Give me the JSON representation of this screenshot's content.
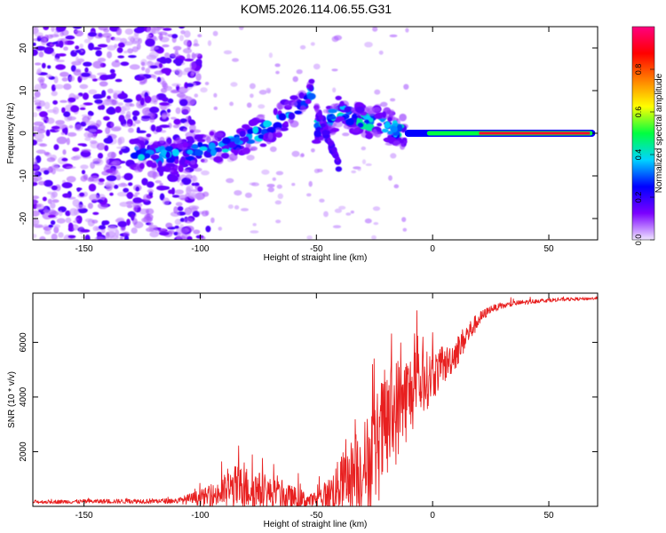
{
  "title": "KOM5.2026.114.06.55.G31",
  "chart_data": [
    {
      "type": "heatmap",
      "name": "spectrogram",
      "xlabel": "Height of straight line (km)",
      "ylabel": "Frequency (Hz)",
      "xlim": [
        -172,
        71
      ],
      "ylim": [
        -25,
        25
      ],
      "xticks": [
        -150,
        -100,
        -50,
        0,
        50
      ],
      "yticks": [
        -20,
        -10,
        0,
        10,
        20
      ],
      "colorbar": {
        "label": "Normalized spectral amplitude",
        "range": [
          0,
          1
        ],
        "ticks": [
          0.0,
          0.2,
          0.4,
          0.6,
          0.8
        ],
        "tick_labels": [
          "0.0",
          "0.2",
          "0.4",
          "0.6",
          "0.8"
        ],
        "colormap": [
          "#ffffff",
          "#7b00ff",
          "#0000ff",
          "#00d4ff",
          "#00ff40",
          "#ffff00",
          "#ff8000",
          "#ff0000",
          "#ff0080"
        ]
      },
      "features": [
        {
          "description": "noise",
          "x_range": [
            -172,
            -100
          ],
          "y_range": [
            -25,
            25
          ],
          "amplitude": 0.08
        },
        {
          "description": "rising ridge",
          "x": [
            -130,
            -110,
            -90,
            -75,
            -60,
            -52
          ],
          "y": [
            -5,
            -5,
            -3,
            0,
            5,
            10
          ],
          "amplitude": 0.3
        },
        {
          "description": "second ridge",
          "x": [
            -50,
            -40,
            -30,
            -20,
            -12
          ],
          "y": [
            1,
            5,
            3,
            2,
            0
          ],
          "amplitude": 0.35
        },
        {
          "description": "carrier line",
          "x": [
            -12,
            70
          ],
          "y": [
            0,
            0
          ],
          "amplitude": 0.95
        }
      ]
    },
    {
      "type": "line",
      "name": "snr",
      "xlabel": "Height of straight line (km)",
      "ylabel": "SNR (10 * v/v)",
      "xlim": [
        -172,
        71
      ],
      "ylim": [
        0,
        7800
      ],
      "xticks": [
        -150,
        -100,
        -50,
        0,
        50
      ],
      "yticks": [
        2000,
        4000,
        6000
      ],
      "color": "#e82020",
      "envelope": {
        "x": [
          -172,
          -110,
          -95,
          -85,
          -78,
          -70,
          -60,
          -52,
          -45,
          -38,
          -30,
          -25,
          -20,
          -15,
          -10,
          -5,
          0,
          5,
          10,
          15,
          20,
          25,
          35,
          45,
          55,
          71
        ],
        "base": [
          150,
          180,
          300,
          500,
          500,
          350,
          200,
          150,
          300,
          700,
          1100,
          1500,
          2500,
          3200,
          3800,
          4200,
          4600,
          5000,
          5500,
          6200,
          6800,
          7200,
          7400,
          7500,
          7550,
          7600
        ],
        "noise": [
          100,
          150,
          600,
          1300,
          1200,
          900,
          700,
          400,
          900,
          1800,
          2500,
          3200,
          3400,
          3000,
          2400,
          1900,
          1400,
          1000,
          900,
          700,
          400,
          200,
          150,
          120,
          100,
          80
        ]
      }
    }
  ]
}
